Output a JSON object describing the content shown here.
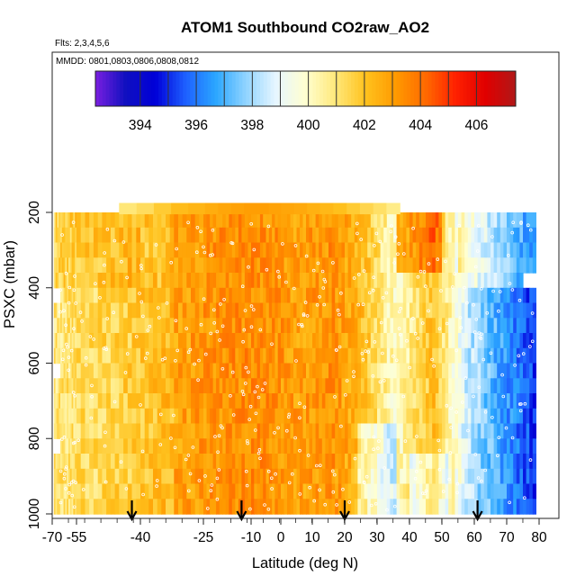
{
  "chart_data": {
    "type": "heatmap",
    "title": "ATOM1 Southbound CO2raw_AO2",
    "flights_note": "Flts: 2,3,4,5,6",
    "dates_note": "MMDD: 0801,0803,0806,0808,0812",
    "xlabel": "Latitude (deg N)",
    "ylabel": "PSXC (mbar)",
    "x_ticks": [
      "-70",
      "-55",
      "-40",
      "-25",
      "-10",
      "0",
      "10",
      "20",
      "30",
      "40",
      "50",
      "60",
      "70",
      "80"
    ],
    "y_ticks": [
      "200",
      "400",
      "600",
      "800",
      "1000"
    ],
    "colorbar_ticks": [
      "394",
      "396",
      "398",
      "400",
      "402",
      "404",
      "406"
    ],
    "colorbar_range": [
      392.4,
      407.4
    ],
    "colorbar_colors": [
      "#7a1fe0",
      "#1010c0",
      "#0000d8",
      "#1e60ff",
      "#2aa6ff",
      "#8fd3ff",
      "#e6f6ff",
      "#ffffd0",
      "#ffe87a",
      "#ffc21e",
      "#ff9a00",
      "#ff6a00",
      "#ff2000",
      "#e00000",
      "#b01818"
    ],
    "ylim": [
      1015,
      175
    ],
    "latitude_bins": [
      -67,
      -63,
      -59,
      -55,
      -51,
      -47,
      -43,
      -39,
      -35,
      -31,
      -27,
      -23,
      -19,
      -15,
      -11,
      -7,
      -3,
      1,
      5,
      9,
      13,
      17,
      21,
      25,
      29,
      33,
      37,
      41,
      45,
      49,
      53,
      57,
      61,
      65,
      69,
      73,
      77
    ],
    "pressure_levels": [
      220,
      260,
      300,
      340,
      380,
      420,
      460,
      500,
      540,
      580,
      620,
      660,
      700,
      740,
      780,
      820,
      860,
      900,
      940,
      980
    ],
    "profile_latitudes_arrows": [
      -42,
      -13,
      20,
      61
    ],
    "upper_layer": {
      "pressure_top": 175,
      "pressure_bottom": 205,
      "lat_start": -45,
      "lat_end": 37,
      "values": [
        401.0,
        401.3,
        401.8,
        402.2,
        402.4,
        402.6,
        402.8,
        402.9,
        403.0,
        403.0,
        402.9,
        402.8,
        402.7,
        402.5,
        402.3,
        402.1,
        401.8,
        401.5,
        401.2,
        400.8
      ]
    }
  }
}
